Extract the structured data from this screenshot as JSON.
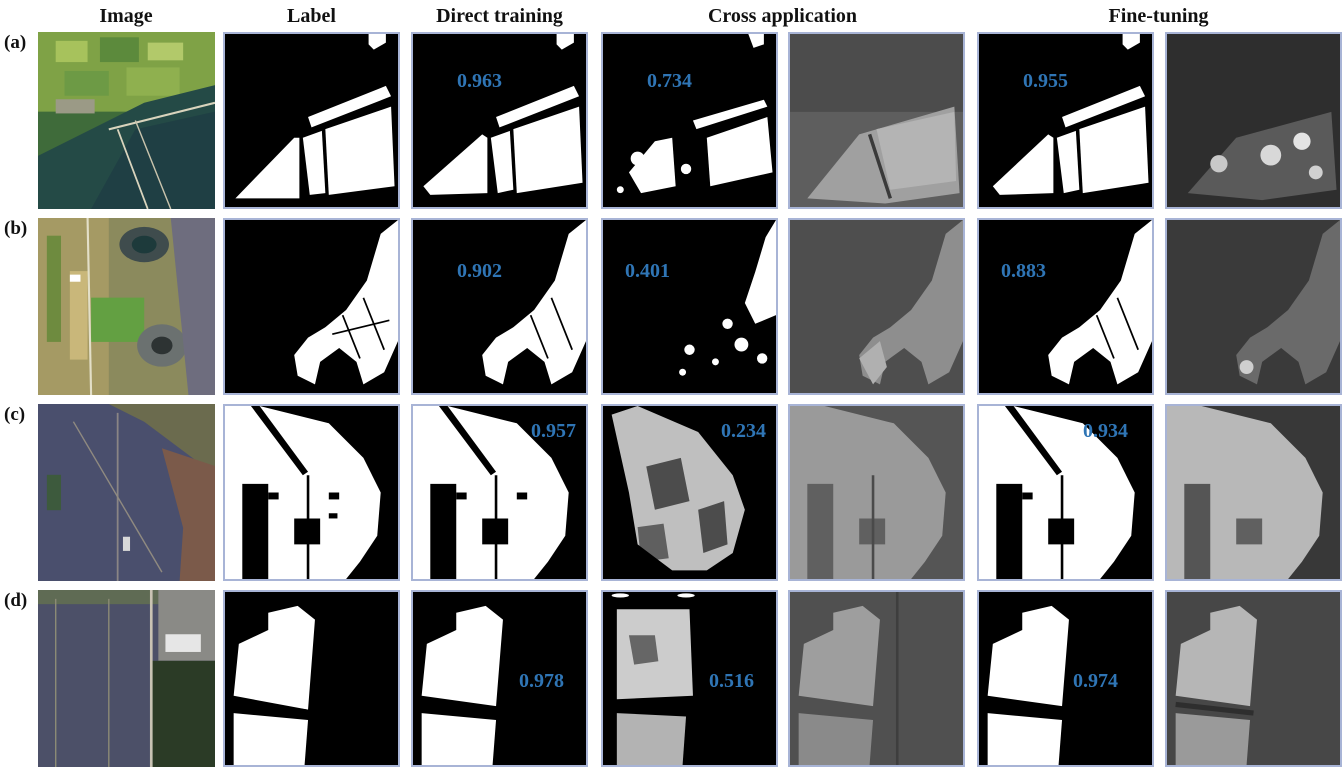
{
  "column_headers": [
    {
      "key": "image",
      "text": "Image"
    },
    {
      "key": "label",
      "text": "Label"
    },
    {
      "key": "direct",
      "text": "Direct training"
    },
    {
      "key": "cross",
      "text": "Cross application"
    },
    {
      "key": "fine",
      "text": "Fine-tuning"
    }
  ],
  "rows": [
    {
      "label": "(a)",
      "direct_score": "0.963",
      "cross_score": "0.734",
      "fine_score": "0.955"
    },
    {
      "label": "(b)",
      "direct_score": "0.902",
      "cross_score": "0.401",
      "fine_score": "0.883"
    },
    {
      "label": "(c)",
      "direct_score": "0.957",
      "cross_score": "0.234",
      "fine_score": "0.934"
    },
    {
      "label": "(d)",
      "direct_score": "0.978",
      "cross_score": "0.516",
      "fine_score": "0.974"
    }
  ],
  "colors": {
    "score_text": "#2f75b5",
    "panel_border": "#a8b4d6",
    "mask_foreground": "#ffffff",
    "mask_background": "#000000"
  }
}
